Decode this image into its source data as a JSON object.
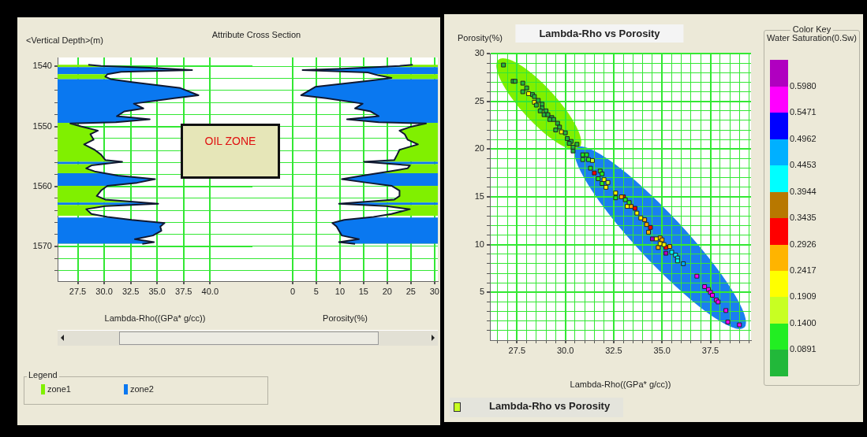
{
  "chart_data": [
    {
      "type": "line",
      "title": "Attribute Cross Section",
      "xlabel": "Lambda-Rho((GPa* g/cc))",
      "ylabel": "<Vertical Depth>(m)",
      "legend_title": "Legend",
      "legend": "bottom left",
      "annotations": [
        "OIL ZONE"
      ],
      "series": [
        {
          "color": "#101830",
          "x": [
            28.5,
            29.7,
            34.3,
            38.3,
            31.6,
            30.3,
            30.1,
            30.6,
            32.6,
            37.2,
            38.9,
            36.6,
            32.8,
            33.7,
            31.9,
            31.2,
            34.3,
            31.1,
            26.8,
            27.8,
            29.4,
            28.7,
            29.0,
            28.1,
            29.1,
            29.7,
            30.1,
            31.7,
            28.8,
            28.3,
            29.1,
            31.3,
            34.8,
            33.1,
            30.3,
            29.7,
            29.3,
            30.1,
            35.1,
            30.1,
            28.3,
            28.8,
            30.3,
            32.6,
            35.7,
            35.3,
            35.4,
            34.6,
            32.9,
            34.7,
            33.6
          ],
          "values": [
            1539.7,
            1539.9,
            1540.2,
            1540.6,
            1540.9,
            1541.3,
            1541.7,
            1542.1,
            1542.6,
            1543.6,
            1544.8,
            1545.3,
            1546.2,
            1547.0,
            1547.5,
            1548.3,
            1548.8,
            1549.3,
            1549.5,
            1550.0,
            1550.7,
            1551.3,
            1552.2,
            1553.0,
            1553.9,
            1554.7,
            1555.6,
            1555.9,
            1556.5,
            1557.0,
            1557.5,
            1558.2,
            1558.8,
            1559.4,
            1559.9,
            1560.7,
            1561.6,
            1562.2,
            1562.9,
            1563.3,
            1563.8,
            1564.6,
            1565.1,
            1565.6,
            1566.1,
            1566.7,
            1567.4,
            1568.2,
            1568.8,
            1569.3,
            1569.6
          ]
        }
      ],
      "bands": [
        {
          "axis": "y",
          "from": 1539.6,
          "to": 1540.1,
          "label": "zone1",
          "color": "#80f000"
        },
        {
          "axis": "y",
          "from": 1540.1,
          "to": 1541.3,
          "label": "zone2",
          "color": "#0a78f0"
        },
        {
          "axis": "y",
          "from": 1541.3,
          "to": 1542.1,
          "color": "#80f000"
        },
        {
          "axis": "y",
          "from": 1542.1,
          "to": 1549.4,
          "color": "#0a78f0"
        },
        {
          "axis": "y",
          "from": 1549.4,
          "to": 1555.9,
          "color": "#80f000"
        },
        {
          "axis": "y",
          "from": 1555.9,
          "to": 1556.3,
          "color": "#0a78f0"
        },
        {
          "axis": "y",
          "from": 1556.3,
          "to": 1557.8,
          "color": "#80f000"
        },
        {
          "axis": "y",
          "from": 1557.8,
          "to": 1559.9,
          "color": "#0a78f0"
        },
        {
          "axis": "y",
          "from": 1559.9,
          "to": 1562.7,
          "color": "#80f000"
        },
        {
          "axis": "y",
          "from": 1562.7,
          "to": 1563.1,
          "color": "#0a78f0"
        },
        {
          "axis": "y",
          "from": 1563.1,
          "to": 1564.9,
          "color": "#80f000"
        },
        {
          "axis": "y",
          "from": 1565.2,
          "to": 1569.6,
          "color": "#0a78f0"
        },
        {
          "axis": "y",
          "from": 1569.6,
          "to": 1569.9,
          "color": "#80f000"
        }
      ],
      "xlim": [
        25.6,
        44.0
      ],
      "xticks": [
        27.5,
        {
          "value": 30,
          "label": "30.0"
        },
        32.5,
        {
          "value": 35,
          "label": "35.0"
        },
        37.5,
        {
          "value": 40,
          "label": "40.0"
        }
      ],
      "ylim": [
        1575.8,
        1538.5
      ],
      "yticks": [
        1540,
        {
          "value": 1542,
          "label": null
        },
        {
          "value": 1544,
          "label": null
        },
        {
          "value": 1546,
          "label": null
        },
        {
          "value": 1548,
          "label": null
        },
        1550,
        {
          "value": 1552,
          "label": null
        },
        {
          "value": 1554,
          "label": null
        },
        {
          "value": 1556,
          "label": null
        },
        {
          "value": 1558,
          "label": null
        },
        1560,
        {
          "value": 1562,
          "label": null
        },
        {
          "value": 1564,
          "label": null
        },
        {
          "value": 1566,
          "label": null
        },
        {
          "value": 1568,
          "label": null
        },
        1570,
        {
          "value": 1572,
          "label": null
        },
        {
          "value": 1574,
          "label": null
        }
      ],
      "grid": true
    },
    {
      "type": "line",
      "xlabel": "Porosity(%)",
      "tick_labels": "x",
      "series": [
        {
          "color": "#101830",
          "x": [
            25.4,
            22.6,
            9.8,
            2.1,
            15.9,
            18.2,
            20.9,
            15.9,
            4.8,
            1.8,
            7.1,
            14.8,
            13.2,
            16.5,
            18.2,
            11.5,
            18.2,
            28.2,
            24.8,
            22.6,
            23.7,
            24.3,
            26.5,
            22.6,
            22.1,
            21.5,
            15.1,
            24.8,
            24.3,
            20.4,
            14.8,
            10.4,
            15.9,
            20.9,
            22.6,
            22.6,
            21.5,
            9.8,
            19.8,
            24.8,
            20.9,
            17.1,
            10.9,
            8.4,
            9.3,
            9.8,
            10.4,
            14.0,
            9.8,
            13.2
          ],
          "values": [
            1539.7,
            1539.9,
            1540.4,
            1540.6,
            1541.0,
            1541.5,
            1541.9,
            1542.4,
            1543.4,
            1544.8,
            1545.3,
            1546.2,
            1547.0,
            1547.5,
            1548.3,
            1548.8,
            1549.3,
            1549.5,
            1550.1,
            1550.7,
            1551.3,
            1552.2,
            1553.0,
            1553.9,
            1554.7,
            1555.6,
            1555.9,
            1556.5,
            1557.0,
            1557.5,
            1558.2,
            1558.8,
            1559.4,
            1559.9,
            1560.7,
            1561.6,
            1562.2,
            1562.9,
            1563.3,
            1563.8,
            1564.6,
            1565.1,
            1565.6,
            1566.1,
            1566.7,
            1567.4,
            1568.2,
            1568.8,
            1569.3,
            1569.6
          ]
        }
      ],
      "bands": [
        {
          "axis": "y",
          "from": 1539.6,
          "to": 1540.1,
          "color": "#80f000"
        },
        {
          "axis": "y",
          "from": 1540.1,
          "to": 1541.3,
          "color": "#0a78f0"
        },
        {
          "axis": "y",
          "from": 1541.3,
          "to": 1542.1,
          "color": "#80f000"
        },
        {
          "axis": "y",
          "from": 1542.1,
          "to": 1549.4,
          "color": "#0a78f0"
        },
        {
          "axis": "y",
          "from": 1549.4,
          "to": 1555.9,
          "color": "#80f000"
        },
        {
          "axis": "y",
          "from": 1555.9,
          "to": 1556.3,
          "color": "#0a78f0"
        },
        {
          "axis": "y",
          "from": 1556.3,
          "to": 1557.8,
          "color": "#80f000"
        },
        {
          "axis": "y",
          "from": 1557.8,
          "to": 1559.9,
          "color": "#0a78f0"
        },
        {
          "axis": "y",
          "from": 1559.9,
          "to": 1562.7,
          "color": "#80f000"
        },
        {
          "axis": "y",
          "from": 1562.7,
          "to": 1563.1,
          "color": "#0a78f0"
        },
        {
          "axis": "y",
          "from": 1563.1,
          "to": 1564.9,
          "color": "#80f000"
        },
        {
          "axis": "y",
          "from": 1565.2,
          "to": 1569.6,
          "color": "#0a78f0"
        },
        {
          "axis": "y",
          "from": 1569.6,
          "to": 1569.9,
          "color": "#80f000"
        }
      ],
      "xlim": [
        -8.5,
        30.7
      ],
      "xticks": [
        0,
        5,
        10,
        15,
        20,
        25,
        30
      ],
      "ylim": [
        1575.8,
        1538.5
      ],
      "yticks": [
        1540,
        1542,
        1544,
        1546,
        1548,
        1550,
        1552,
        1554,
        1556,
        1558,
        1560,
        1562,
        1564,
        1566,
        1568,
        1570,
        1572,
        1574
      ],
      "grid": true
    },
    {
      "type": "scatter",
      "title": "Lambda-Rho vs Porosity",
      "xlabel": "Lambda-Rho((GPa* g/cc))",
      "ylabel": "Porosity(%)",
      "clabel": "Water Saturation(0.Sw)",
      "annotations": [
        "Color Key",
        "Lambda-Rho vs Porosity"
      ],
      "marker": "square",
      "series": [
        {
          "color": "#22b83a",
          "x": [
            26.8,
            27.3,
            27.4,
            27.8,
            27.8,
            28.0,
            28.3,
            28.6,
            28.5,
            28.8,
            28.8,
            28.7,
            29.0,
            28.9,
            29.1,
            29.3,
            29.2,
            29.4,
            29.6,
            29.7,
            29.5,
            30.0,
            30.1,
            30.3,
            30.2,
            30.6,
            30.4,
            30.4,
            28.4
          ],
          "values": [
            28.8,
            27.1,
            27.1,
            26.9,
            26.0,
            26.4,
            25.7,
            25.1,
            24.6,
            24.7,
            24.3,
            24.0,
            24.0,
            23.6,
            23.6,
            23.3,
            23.1,
            23.1,
            22.7,
            22.3,
            22.0,
            21.7,
            21.1,
            20.8,
            20.6,
            20.5,
            19.8,
            20.2,
            25.5
          ]
        },
        {
          "color": "#22ee22",
          "x": [
            30.9,
            31.1,
            30.9,
            31.2,
            31.3,
            31.8,
            31.9,
            31.7,
            31.9,
            32.6,
            33.1,
            33.3
          ],
          "values": [
            19.4,
            19.4,
            18.9,
            18.9,
            18.0,
            17.7,
            17.4,
            16.9,
            16.4,
            14.9,
            14.7,
            14.4
          ]
        },
        {
          "color": "#c8ff22",
          "x": [
            31.4,
            32.2
          ],
          "values": [
            18.8,
            16.5
          ]
        },
        {
          "color": "#ffff00",
          "x": [
            28.1,
            28.4,
            29.8,
            32.0,
            32.1,
            32.6,
            33.2,
            33.7,
            33.9,
            34.7,
            34.9,
            35.1
          ],
          "values": [
            25.8,
            24.9,
            21.8,
            16.8,
            16.0,
            15.4,
            14.0,
            13.3,
            12.8,
            10.6,
            10.1,
            10.0
          ]
        },
        {
          "color": "#ffb400",
          "x": [
            32.9,
            33.4,
            34.1,
            34.2,
            34.3,
            34.9,
            35.0,
            34.8,
            35.4
          ],
          "values": [
            15.0,
            14.0,
            12.6,
            12.1,
            11.3,
            10.7,
            10.5,
            9.7,
            9.8
          ]
        },
        {
          "color": "#ff0000",
          "x": [
            31.5,
            33.0,
            33.6,
            34.4,
            35.2
          ],
          "values": [
            17.5,
            15.0,
            13.8,
            11.8,
            9.7
          ]
        },
        {
          "color": "#b87800"
        },
        {
          "color": "#00ffff",
          "x": [
            35.5,
            35.7,
            35.8,
            35.8
          ],
          "values": [
            9.2,
            8.9,
            8.6,
            8.3
          ]
        },
        {
          "color": "#00b0ff",
          "x": [
            36.1
          ],
          "values": [
            8.0
          ]
        },
        {
          "color": "#0000ff"
        },
        {
          "color": "#ff00ff",
          "x": [
            36.8,
            37.2,
            37.4,
            37.5,
            37.6,
            37.8,
            37.9,
            38.3,
            38.4,
            39.0
          ],
          "values": [
            6.7,
            5.6,
            5.3,
            5.0,
            4.7,
            4.2,
            4.0,
            3.1,
            1.9,
            1.6
          ]
        },
        {
          "color": "#b000c0",
          "x": [
            34.5,
            35.2
          ],
          "values": [
            10.6,
            9.1
          ]
        }
      ],
      "xlim": [
        26.1,
        39.6
      ],
      "xticks": [
        {
          "value": 26.5,
          "label": null
        },
        {
          "value": 27,
          "label": null
        },
        27.5,
        {
          "value": 28,
          "label": null
        },
        {
          "value": 28.5,
          "label": null
        },
        {
          "value": 29,
          "label": null
        },
        {
          "value": 29.5,
          "label": null
        },
        {
          "value": 30,
          "label": "30.0"
        },
        {
          "value": 30.5,
          "label": null
        },
        {
          "value": 31,
          "label": null
        },
        {
          "value": 31.5,
          "label": null
        },
        {
          "value": 32,
          "label": null
        },
        32.5,
        {
          "value": 33,
          "label": null
        },
        {
          "value": 33.5,
          "label": null
        },
        {
          "value": 34,
          "label": null
        },
        {
          "value": 34.5,
          "label": null
        },
        {
          "value": 35,
          "label": "35.0"
        },
        {
          "value": 35.5,
          "label": null
        },
        {
          "value": 36,
          "label": null
        },
        {
          "value": 36.5,
          "label": null
        },
        {
          "value": 37,
          "label": null
        },
        37.5,
        {
          "value": 38,
          "label": null
        },
        {
          "value": 38.5,
          "label": null
        },
        {
          "value": 39,
          "label": null
        },
        {
          "value": 39.5,
          "label": null
        }
      ],
      "ylim": [
        0,
        30
      ],
      "yticks": [
        {
          "value": 1,
          "label": null
        },
        {
          "value": 2,
          "label": null
        },
        {
          "value": 3,
          "label": null
        },
        {
          "value": 4,
          "label": null
        },
        5,
        {
          "value": 6,
          "label": null
        },
        {
          "value": 7,
          "label": null
        },
        {
          "value": 8,
          "label": null
        },
        {
          "value": 9,
          "label": null
        },
        10,
        {
          "value": 11,
          "label": null
        },
        {
          "value": 12,
          "label": null
        },
        {
          "value": 13,
          "label": null
        },
        {
          "value": 14,
          "label": null
        },
        15,
        {
          "value": 16,
          "label": null
        },
        {
          "value": 17,
          "label": null
        },
        {
          "value": 18,
          "label": null
        },
        {
          "value": 19,
          "label": null
        },
        20,
        {
          "value": 21,
          "label": null
        },
        {
          "value": 22,
          "label": null
        },
        {
          "value": 23,
          "label": null
        },
        {
          "value": 24,
          "label": null
        },
        25,
        {
          "value": 26,
          "label": null
        },
        {
          "value": 27,
          "label": null
        },
        {
          "value": 28,
          "label": null
        },
        {
          "value": 29,
          "label": null
        },
        30
      ],
      "grid": true,
      "clim": [
        0.0382,
        0.6489
      ],
      "cticks": [
        0.0891,
        {
          "value": 0.14,
          "label": "0.1400"
        },
        0.1909,
        0.2417,
        0.2926,
        0.3435,
        0.3944,
        0.4453,
        0.4962,
        0.5471,
        {
          "value": 0.598,
          "label": "0.5980"
        }
      ]
    }
  ]
}
